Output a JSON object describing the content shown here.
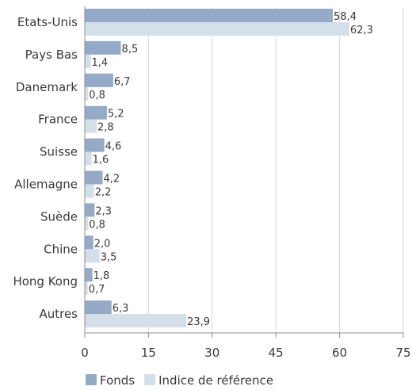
{
  "chart_data": {
    "type": "bar",
    "orientation": "horizontal",
    "categories": [
      "Etats-Unis",
      "Pays Bas",
      "Danemark",
      "France",
      "Suisse",
      "Allemagne",
      "Suède",
      "Chine",
      "Hong Kong",
      "Autres"
    ],
    "series": [
      {
        "name": "Fonds",
        "color": "#94aac7",
        "values": [
          58.4,
          8.5,
          6.7,
          5.2,
          4.6,
          4.2,
          2.3,
          2.0,
          1.8,
          6.3
        ],
        "labels": [
          "58,4",
          "8,5",
          "6,7",
          "5,2",
          "4,6",
          "4,2",
          "2,3",
          "2,0",
          "1,8",
          "6,3"
        ]
      },
      {
        "name": "Indice de référence",
        "color": "#d5dfea",
        "values": [
          62.3,
          1.4,
          0.8,
          2.8,
          1.6,
          2.2,
          0.8,
          3.5,
          0.7,
          23.9
        ],
        "labels": [
          "62,3",
          "1,4",
          "0,8",
          "2,8",
          "1,6",
          "2,2",
          "0,8",
          "3,5",
          "0,7",
          "23,9"
        ]
      }
    ],
    "xlim": [
      0,
      75
    ],
    "xticks": [
      0,
      15,
      30,
      45,
      60,
      75
    ],
    "xtick_labels": [
      "0",
      "15",
      "30",
      "45",
      "60",
      "75"
    ],
    "grid": "vertical",
    "legend": "bottom-left"
  }
}
